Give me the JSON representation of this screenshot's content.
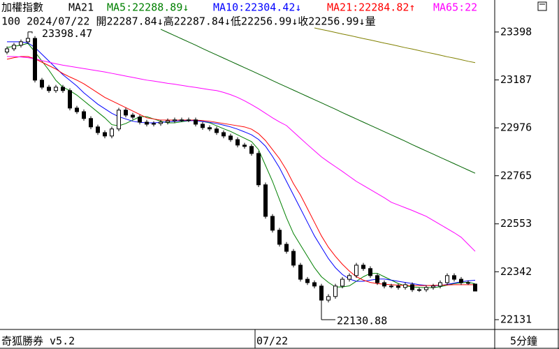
{
  "chart_data": {
    "type": "candlestick",
    "title": "加權指數",
    "subtitle": "MA21",
    "info": "100 2024/07/22 開22287.84↓高22287.84↓低22256.99↓收22256.99↓量",
    "footer_left": "奇狐勝券 v5.2",
    "footer_right": "5分鐘",
    "categories": [
      null,
      null,
      null,
      null,
      null,
      null,
      null,
      null,
      null,
      null,
      null,
      null,
      null,
      null,
      null,
      null,
      null,
      null,
      null,
      null,
      null,
      null,
      null,
      null,
      null,
      null,
      null,
      null,
      null,
      null,
      null,
      null,
      null,
      null,
      null,
      null,
      "07/22",
      null,
      null,
      null,
      null,
      null,
      null,
      null,
      null,
      null,
      null,
      null,
      null,
      null,
      null,
      null,
      null,
      null,
      null,
      null,
      null,
      null,
      null,
      null,
      null,
      null,
      null,
      null,
      null,
      null,
      null,
      null
    ],
    "open": [
      23310,
      23324,
      23340,
      23355,
      23370,
      23186,
      23155,
      23140,
      23155,
      23140,
      23063,
      23047,
      23017,
      22980,
      22955,
      22940,
      22971,
      23054,
      23032,
      23023,
      23001,
      22992,
      22995,
      23001,
      23007,
      23011,
      23011,
      23011,
      22992,
      22977,
      22971,
      22955,
      22940,
      22924,
      22900,
      22894,
      22863,
      22725,
      22586,
      22525,
      22463,
      22432,
      22371,
      22309,
      22294,
      22279,
      22217,
      22233,
      22279,
      22309,
      22325,
      22371,
      22356,
      22325,
      22294,
      22279,
      22279,
      22273,
      22285,
      22263,
      22263,
      22273,
      22279,
      22294,
      22325,
      22309,
      22294,
      22287.84
    ],
    "high": [
      23334,
      23350,
      23365,
      23398.47,
      23380,
      23196,
      23165,
      23165,
      23165,
      23150,
      23073,
      23057,
      23027,
      22990,
      22965,
      22981,
      23064,
      23064,
      23042,
      23033,
      23011,
      23005,
      23011,
      23017,
      23021,
      23021,
      23021,
      23021,
      23002,
      22987,
      22981,
      22965,
      22950,
      22934,
      22910,
      22904,
      22873,
      22735,
      22596,
      22535,
      22473,
      22442,
      22381,
      22319,
      22304,
      22289,
      22243,
      22289,
      22319,
      22335,
      22381,
      22381,
      22366,
      22335,
      22304,
      22289,
      22289,
      22295,
      22295,
      22273,
      22283,
      22289,
      22304,
      22335,
      22335,
      22319,
      22304,
      22287.84
    ],
    "low": [
      23300,
      23314,
      23330,
      23345,
      23176,
      23145,
      23130,
      23130,
      23130,
      23053,
      23037,
      23007,
      22970,
      22945,
      22930,
      22930,
      22961,
      23022,
      23013,
      22991,
      22982,
      22982,
      22985,
      22991,
      22997,
      23001,
      23001,
      22982,
      22967,
      22961,
      22945,
      22930,
      22914,
      22890,
      22884,
      22853,
      22715,
      22576,
      22515,
      22453,
      22422,
      22361,
      22299,
      22284,
      22269,
      22130.88,
      22207,
      22223,
      22269,
      22299,
      22315,
      22346,
      22315,
      22284,
      22269,
      22269,
      22263,
      22263,
      22253,
      22253,
      22253,
      22263,
      22269,
      22284,
      22299,
      22284,
      22284,
      22256.99
    ],
    "close": [
      23324,
      23340,
      23355,
      23370,
      23186,
      23155,
      23140,
      23155,
      23140,
      23063,
      23047,
      23017,
      22980,
      22955,
      22940,
      22971,
      23054,
      23032,
      23023,
      23001,
      22992,
      22995,
      23001,
      23007,
      23011,
      23011,
      23011,
      22992,
      22977,
      22971,
      22955,
      22940,
      22924,
      22900,
      22894,
      22863,
      22725,
      22586,
      22525,
      22463,
      22432,
      22371,
      22309,
      22294,
      22279,
      22217,
      22233,
      22279,
      22309,
      22325,
      22371,
      22356,
      22325,
      22294,
      22279,
      22279,
      22273,
      22285,
      22263,
      22263,
      22273,
      22279,
      22294,
      22325,
      22309,
      22294,
      22294,
      22256.99
    ],
    "series": [
      {
        "name": "MA5:22288.89↓",
        "color": "#008000",
        "values": [
          23330,
          23335,
          23340,
          23348,
          23310,
          23270,
          23230,
          23185,
          23155,
          23140,
          23120,
          23095,
          23070,
          23045,
          23020,
          22990,
          22985,
          22995,
          23010,
          23025,
          23025,
          23015,
          23005,
          22998,
          22998,
          23003,
          23007,
          23010,
          23004,
          22998,
          22985,
          22972,
          22960,
          22945,
          22930,
          22915,
          22880,
          22810,
          22740,
          22660,
          22580,
          22510,
          22460,
          22410,
          22360,
          22320,
          22295,
          22275,
          22275,
          22280,
          22300,
          22320,
          22335,
          22335,
          22320,
          22305,
          22290,
          22280,
          22275,
          22273,
          22272,
          22272,
          22276,
          22283,
          22290,
          22293,
          22296,
          22288.89
        ]
      },
      {
        "name": "MA10:22304.42↓",
        "color": "#0000ff",
        "values": [
          23355,
          23355,
          23355,
          23350,
          23330,
          23300,
          23270,
          23240,
          23210,
          23185,
          23160,
          23130,
          23105,
          23080,
          23060,
          23040,
          23025,
          23015,
          23005,
          23000,
          22998,
          22998,
          23000,
          23003,
          23005,
          23007,
          23008,
          23007,
          23004,
          23000,
          22995,
          22988,
          22980,
          22970,
          22958,
          22945,
          22925,
          22895,
          22850,
          22800,
          22740,
          22680,
          22620,
          22560,
          22500,
          22450,
          22400,
          22360,
          22330,
          22310,
          22300,
          22300,
          22305,
          22310,
          22310,
          22305,
          22300,
          22295,
          22290,
          22285,
          22282,
          22280,
          22282,
          22286,
          22292,
          22298,
          22302,
          22304.42
        ]
      },
      {
        "name": "MA21:22284.82↑",
        "color": "#ff0000",
        "values": [
          23278,
          23285,
          23290,
          23290,
          23280,
          23265,
          23250,
          23235,
          23215,
          23200,
          23186,
          23170,
          23150,
          23130,
          23110,
          23095,
          23080,
          23065,
          23050,
          23035,
          23020,
          23015,
          23010,
          23010,
          23010,
          23010,
          23010,
          23010,
          23008,
          23005,
          23000,
          22995,
          22990,
          22985,
          22980,
          22970,
          22950,
          22920,
          22880,
          22840,
          22790,
          22730,
          22680,
          22620,
          22560,
          22500,
          22450,
          22410,
          22375,
          22345,
          22320,
          22305,
          22295,
          22290,
          22287,
          22285,
          22283,
          22282,
          22281,
          22281,
          22281,
          22282,
          22283,
          22284,
          22285,
          22285,
          22285,
          22284.82
        ]
      },
      {
        "name": "MA65:22",
        "color": "#ff00ff",
        "values": [
          23290,
          23290,
          23288,
          23285,
          23280,
          23272,
          23265,
          23258,
          23252,
          23247,
          23242,
          23237,
          23232,
          23227,
          23222,
          23216,
          23210,
          23204,
          23198,
          23192,
          23186,
          23182,
          23177,
          23172,
          23168,
          23163,
          23158,
          23154,
          23149,
          23144,
          23140,
          23132,
          23122,
          23110,
          23095,
          23078,
          23060,
          23040,
          23020,
          23002,
          22986,
          22958,
          22930,
          22902,
          22875,
          22848,
          22826,
          22805,
          22784,
          22762,
          22740,
          22722,
          22704,
          22686,
          22668,
          22648,
          22636,
          22624,
          22612,
          22599,
          22586,
          22568,
          22550,
          22532,
          22514,
          22494,
          22463,
          22432
        ]
      },
      {
        "color": "#006400",
        "values": [
          null,
          null,
          null,
          null,
          null,
          null,
          null,
          null,
          null,
          null,
          null,
          null,
          null,
          null,
          null,
          null,
          null,
          null,
          null,
          null,
          null,
          null,
          23410,
          23396,
          23382,
          23368,
          23354,
          23340,
          23325,
          23311,
          23297,
          23283,
          23269,
          23255,
          23241,
          23227,
          23213,
          23199,
          23184,
          23170,
          23156,
          23142,
          23128,
          23114,
          23100,
          23086,
          23072,
          23058,
          23043,
          23029,
          23015,
          23001,
          22987,
          22973,
          22959,
          22945,
          22931,
          22917,
          22902,
          22888,
          22874,
          22860,
          22846,
          22832,
          22818,
          22804,
          22790,
          22776
        ]
      },
      {
        "color": "#808000",
        "values": [
          null,
          null,
          null,
          null,
          null,
          null,
          null,
          null,
          null,
          null,
          null,
          null,
          null,
          null,
          null,
          null,
          null,
          null,
          null,
          null,
          null,
          null,
          null,
          null,
          null,
          null,
          null,
          null,
          null,
          null,
          null,
          null,
          null,
          null,
          null,
          null,
          null,
          null,
          null,
          null,
          null,
          null,
          null,
          null,
          23416,
          23409,
          23403,
          23396,
          23389,
          23383,
          23376,
          23369,
          23363,
          23356,
          23349,
          23343,
          23336,
          23329,
          23323,
          23316,
          23309,
          23303,
          23296,
          23289,
          23283,
          23276,
          23269,
          23263
        ]
      }
    ],
    "ylim": [
      22094,
      23539
    ],
    "yticks": [
      23398,
      23187,
      22976,
      22765,
      22553,
      22342,
      22131
    ],
    "up_color": "#ffffff",
    "down_color": "#000000"
  }
}
